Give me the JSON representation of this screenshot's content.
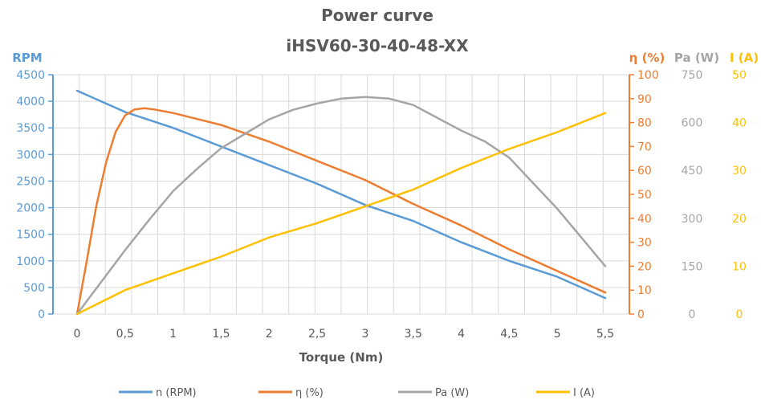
{
  "chart_data": {
    "type": "line",
    "title": "Power curve",
    "subtitle": "iHSV60-30-40-48-XX",
    "xlabel": "Torque (Nm)",
    "x_ticks": [
      "0",
      "0,5",
      "1",
      "1,5",
      "2",
      "2,5",
      "3",
      "3,5",
      "4",
      "4,5",
      "5",
      "5,5"
    ],
    "xlim": [
      0,
      5.5
    ],
    "grid": true,
    "legend_position": "bottom",
    "colors": {
      "rpm": "#5b9bd5",
      "eff": "#ed7d31",
      "power": "#a5a5a5",
      "current": "#ffc000",
      "title": "#595959",
      "grid": "#d9d9d9"
    },
    "axes": [
      {
        "id": "rpm",
        "label": "RPM",
        "range": [
          0,
          4500
        ],
        "ticks": [
          "0",
          "500",
          "1000",
          "1500",
          "2000",
          "2500",
          "3000",
          "3500",
          "4000",
          "4500"
        ]
      },
      {
        "id": "eff",
        "label": "η (%)",
        "range": [
          0,
          100
        ],
        "ticks": [
          "0",
          "10",
          "20",
          "30",
          "40",
          "50",
          "60",
          "70",
          "80",
          "90",
          "100"
        ]
      },
      {
        "id": "power",
        "label": "Pa (W)",
        "range": [
          0,
          750
        ],
        "ticks": [
          "0",
          "150",
          "300",
          "450",
          "600",
          "750"
        ]
      },
      {
        "id": "current",
        "label": "I (A)",
        "range": [
          0,
          50
        ],
        "ticks": [
          "0",
          "10",
          "20",
          "30",
          "40",
          "50"
        ]
      }
    ],
    "series": [
      {
        "name": "n (RPM)",
        "axis": "rpm",
        "color": "#5b9bd5",
        "x": [
          0,
          0.5,
          1,
          1.5,
          2,
          2.5,
          3,
          3.5,
          4,
          4.5,
          5,
          5.5
        ],
        "values": [
          4200,
          3800,
          3500,
          3150,
          2800,
          2450,
          2050,
          1750,
          1350,
          1000,
          700,
          300
        ]
      },
      {
        "name": "η (%)",
        "axis": "eff",
        "color": "#ed7d31",
        "x": [
          0,
          0.1,
          0.2,
          0.3,
          0.4,
          0.5,
          0.6,
          0.7,
          0.8,
          1,
          1.5,
          2,
          2.5,
          3,
          3.5,
          4,
          4.5,
          5,
          5.5
        ],
        "values": [
          0,
          22,
          45,
          63,
          76,
          83,
          85.5,
          86,
          85.5,
          84,
          79,
          72,
          64,
          56,
          46,
          37,
          27,
          18,
          9
        ]
      },
      {
        "name": "Pa (W)",
        "axis": "power",
        "color": "#a5a5a5",
        "x": [
          0,
          0.25,
          0.5,
          0.75,
          1,
          1.25,
          1.5,
          1.75,
          2,
          2.25,
          2.5,
          2.75,
          3,
          3.25,
          3.5,
          3.75,
          4,
          4.25,
          4.5,
          4.75,
          5,
          5.25,
          5.5
        ],
        "values": [
          0,
          100,
          200,
          295,
          385,
          455,
          520,
          565,
          610,
          640,
          660,
          675,
          680,
          675,
          655,
          615,
          575,
          540,
          490,
          410,
          330,
          240,
          150
        ]
      },
      {
        "name": "I (A)",
        "axis": "current",
        "color": "#ffc000",
        "x": [
          0,
          0.5,
          1,
          1.5,
          2,
          2.5,
          3,
          3.5,
          4,
          4.5,
          5,
          5.5
        ],
        "values": [
          0,
          5,
          8.5,
          12,
          16,
          19,
          22.5,
          26,
          30.5,
          34.5,
          38,
          42
        ]
      }
    ]
  }
}
